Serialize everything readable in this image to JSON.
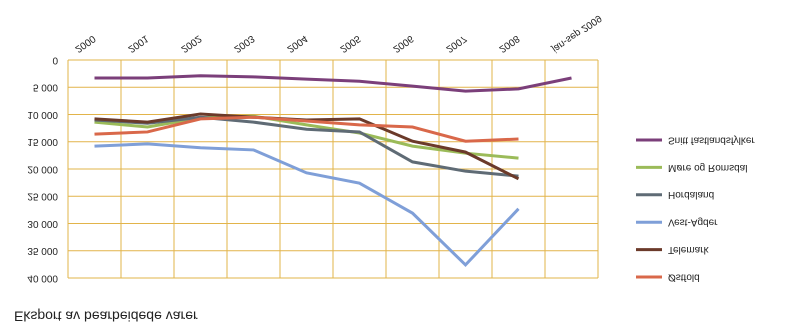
{
  "chart_data": {
    "type": "line",
    "title": "Eksport av bearbeidede varer",
    "categories": [
      "2000",
      "2001",
      "2002",
      "2003",
      "2004",
      "2005",
      "2006",
      "2007",
      "2008",
      "jan-sep 2009"
    ],
    "series": [
      {
        "name": "Snitt fastlandsfylker",
        "color": "#7b3f7a",
        "values": [
          3300,
          3300,
          2900,
          3100,
          3500,
          3900,
          4800,
          5700,
          5300,
          3300
        ]
      },
      {
        "name": "Møre og Romsdal",
        "color": "#9bbb59",
        "values": [
          11400,
          12300,
          10600,
          10300,
          11900,
          13400,
          15800,
          17100,
          18000,
          null
        ]
      },
      {
        "name": "Hordaland",
        "color": "#5f6b75",
        "values": [
          11000,
          11600,
          10500,
          11400,
          12700,
          13200,
          18700,
          20400,
          21300,
          null
        ]
      },
      {
        "name": "Vest-Agder",
        "color": "#7f9fd8",
        "values": [
          15800,
          15400,
          16100,
          16500,
          20700,
          22600,
          28100,
          37600,
          27300,
          null
        ]
      },
      {
        "name": "Telemark",
        "color": "#6b3a2a",
        "values": [
          10800,
          11400,
          9900,
          10500,
          11000,
          10800,
          14900,
          16900,
          21800,
          null
        ]
      },
      {
        "name": "Østfold",
        "color": "#d9684a",
        "values": [
          13600,
          13200,
          10800,
          10500,
          11200,
          11900,
          12300,
          14900,
          14500,
          null
        ]
      }
    ],
    "ylim": [
      0,
      40000
    ],
    "yticks": [
      0,
      {
        "value": 5000,
        "label": "5 000"
      },
      {
        "value": 10000,
        "label": "10 000"
      },
      {
        "value": 15000,
        "label": "15 000"
      },
      {
        "value": 20000,
        "label": "20 000"
      },
      {
        "value": 25000,
        "label": "25 000"
      },
      {
        "value": 30000,
        "label": "30 000"
      },
      {
        "value": 35000,
        "label": "35 000"
      },
      {
        "value": 40000,
        "label": "40 000"
      }
    ],
    "grid": true,
    "grid_color": "#e2b44a",
    "flipped_vertically": true
  }
}
